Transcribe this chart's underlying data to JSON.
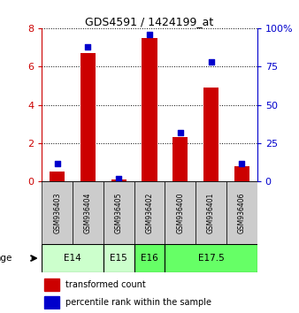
{
  "title": "GDS4591 / 1424199_at",
  "samples": [
    "GSM936403",
    "GSM936404",
    "GSM936405",
    "GSM936402",
    "GSM936400",
    "GSM936401",
    "GSM936406"
  ],
  "red_values": [
    0.5,
    6.7,
    0.1,
    7.5,
    2.3,
    4.9,
    0.8
  ],
  "blue_values_pct": [
    12,
    88,
    2,
    96,
    32,
    78,
    12
  ],
  "ylim_left": [
    0,
    8
  ],
  "ylim_right": [
    0,
    100
  ],
  "yticks_left": [
    0,
    2,
    4,
    6,
    8
  ],
  "yticks_right": [
    0,
    25,
    50,
    75,
    100
  ],
  "age_groups": [
    {
      "label": "E14",
      "start": 0,
      "end": 2,
      "color": "#ccffcc"
    },
    {
      "label": "E15",
      "start": 2,
      "end": 3,
      "color": "#ccffcc"
    },
    {
      "label": "E16",
      "start": 3,
      "end": 4,
      "color": "#66ff66"
    },
    {
      "label": "E17.5",
      "start": 4,
      "end": 7,
      "color": "#66ff66"
    }
  ],
  "red_color": "#cc0000",
  "blue_color": "#0000cc",
  "bar_width": 0.5,
  "dot_size": 25,
  "sample_box_color": "#cccccc",
  "legend_red": "transformed count",
  "legend_blue": "percentile rank within the sample"
}
